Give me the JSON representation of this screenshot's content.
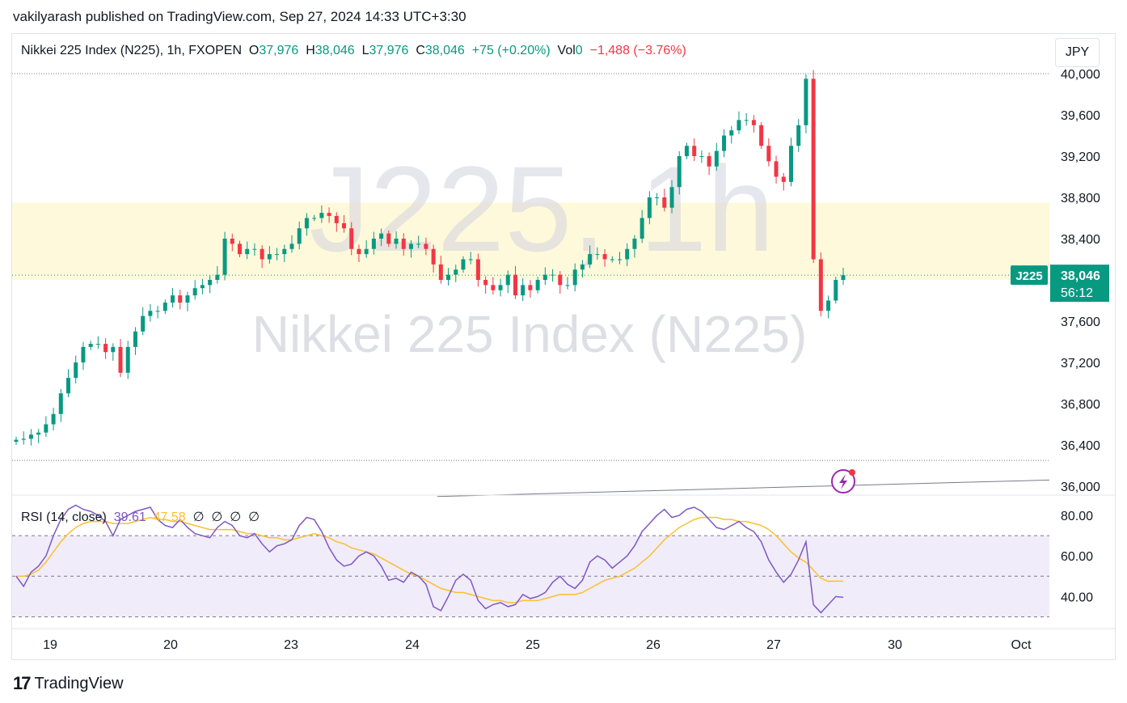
{
  "publisher_line": "vakilyarash published on TradingView.com, Sep 27, 2024 14:33 UTC+3:30",
  "legend": {
    "symbol": "Nikkei 225 Index (N225), 1h, FXOPEN",
    "o_label": "O",
    "o_value": "37,976",
    "h_label": "H",
    "h_value": "38,046",
    "l_label": "L",
    "l_value": "37,976",
    "c_label": "C",
    "c_value": "38,046",
    "change": "+75 (+0.20%)",
    "vol_label": "Vol",
    "vol_value": "0",
    "vol_change": "−1,488 (−3.76%)"
  },
  "currency_button": "JPY",
  "watermark": {
    "big": "J225, 1h",
    "small": "Nikkei 225 Index (N225)"
  },
  "price_tag": {
    "symbol": "J225",
    "price": "38,046",
    "countdown": "56:12"
  },
  "rsi_legend": {
    "label": "RSI (14, close)",
    "value1": "39.61",
    "value2": "47.58",
    "empties": [
      "∅",
      "∅",
      "∅",
      "∅"
    ]
  },
  "brand": {
    "logo": "17",
    "name": "TradingView"
  },
  "colors": {
    "up": "#089981",
    "down": "#f23645",
    "rsi": "#7e57c2",
    "rsi_ma": "#fbc02d",
    "zone": "#fff9dc",
    "rsi_band": "#f0ecfa"
  },
  "icons": [
    "tradingview-logo-icon",
    "lightning-icon"
  ],
  "chart_data": [
    {
      "type": "candlestick",
      "title": "Nikkei 225 Index (N225), 1h, FXOPEN",
      "ylim": [
        36000,
        40000
      ],
      "y_ticks": [
        "36,000",
        "36,400",
        "36,800",
        "37,200",
        "37,600",
        "38,400",
        "38,800",
        "39,200",
        "39,600",
        "40,000"
      ],
      "x_ticks": [
        "19",
        "20",
        "23",
        "24",
        "25",
        "26",
        "27",
        "30",
        "Oct"
      ],
      "last_price": 38046,
      "zone": [
        38000,
        38750
      ],
      "top_line": 40000,
      "bottom_line": 36250,
      "trendline": [
        [
          0.41,
          35900
        ],
        [
          1.0,
          36060
        ]
      ],
      "closes": [
        36450,
        36460,
        36500,
        36520,
        36600,
        36700,
        36900,
        37050,
        37200,
        37350,
        37380,
        37380,
        37300,
        37350,
        37100,
        37350,
        37500,
        37650,
        37700,
        37700,
        37780,
        37850,
        37780,
        37850,
        37920,
        37950,
        38000,
        38050,
        38400,
        38350,
        38250,
        38300,
        38300,
        38200,
        38250,
        38250,
        38300,
        38350,
        38500,
        38600,
        38600,
        38650,
        38620,
        38550,
        38500,
        38300,
        38250,
        38300,
        38400,
        38450,
        38350,
        38400,
        38300,
        38350,
        38350,
        38300,
        38150,
        38000,
        38050,
        38100,
        38200,
        38200,
        38000,
        37950,
        37900,
        37950,
        38050,
        37850,
        37950,
        37900,
        38000,
        38050,
        38050,
        37950,
        37950,
        38100,
        38150,
        38250,
        38250,
        38200,
        38200,
        38200,
        38300,
        38400,
        38600,
        38800,
        38800,
        38700,
        38900,
        39200,
        39300,
        39200,
        39200,
        39100,
        39250,
        39400,
        39450,
        39550,
        39550,
        39500,
        39300,
        39150,
        39000,
        38950,
        39300,
        39500,
        39950,
        38200,
        37700,
        37800,
        38000,
        38046
      ],
      "highs_offset": 60,
      "lows_offset": 60
    },
    {
      "type": "line",
      "title": "RSI (14, close)",
      "ylim": [
        25,
        90
      ],
      "y_ticks": [
        "40.00",
        "60.00",
        "80.00"
      ],
      "bands": [
        30,
        50,
        70
      ],
      "series": [
        {
          "name": "RSI",
          "values": [
            50,
            45,
            52,
            55,
            60,
            70,
            78,
            83,
            85,
            83,
            82,
            80,
            77,
            70,
            78,
            80,
            82,
            83,
            84,
            78,
            75,
            74,
            78,
            74,
            71,
            70,
            69,
            74,
            77,
            75,
            70,
            69,
            71,
            66,
            62,
            65,
            66,
            68,
            75,
            79,
            78,
            72,
            64,
            58,
            55,
            56,
            60,
            62,
            60,
            55,
            48,
            49,
            47,
            52,
            50,
            46,
            35,
            33,
            40,
            48,
            51,
            48,
            38,
            34,
            36,
            37,
            35,
            36,
            41,
            39,
            40,
            42,
            47,
            50,
            46,
            44,
            48,
            57,
            60,
            58,
            54,
            57,
            60,
            65,
            72,
            76,
            80,
            83,
            79,
            80,
            83,
            84,
            82,
            78,
            74,
            73,
            75,
            77,
            74,
            72,
            67,
            58,
            52,
            47,
            51,
            58,
            67,
            36,
            32,
            36,
            40,
            39.61
          ]
        },
        {
          "name": "RSI-based MA",
          "values": [
            50,
            50,
            51,
            53,
            57,
            62,
            67,
            71,
            74,
            76,
            77,
            77,
            77,
            76,
            76,
            76,
            77,
            78,
            79,
            78,
            78,
            77,
            77,
            76,
            75,
            74,
            73,
            73,
            73,
            73,
            72,
            71,
            71,
            70,
            69,
            69,
            68,
            68,
            69,
            70,
            71,
            70,
            69,
            67,
            66,
            64,
            63,
            62,
            61,
            59,
            57,
            55,
            53,
            51,
            50,
            48,
            46,
            44,
            43,
            42,
            42,
            41,
            40,
            39,
            38,
            38,
            37,
            37,
            38,
            38,
            38,
            39,
            40,
            41,
            41,
            41,
            42,
            44,
            46,
            48,
            49,
            50,
            52,
            54,
            57,
            60,
            64,
            68,
            71,
            74,
            76,
            78,
            79,
            79,
            79,
            78,
            78,
            77,
            77,
            76,
            75,
            73,
            70,
            66,
            62,
            59,
            57,
            53,
            49,
            47.5,
            47.58,
            47.58
          ]
        }
      ]
    }
  ]
}
